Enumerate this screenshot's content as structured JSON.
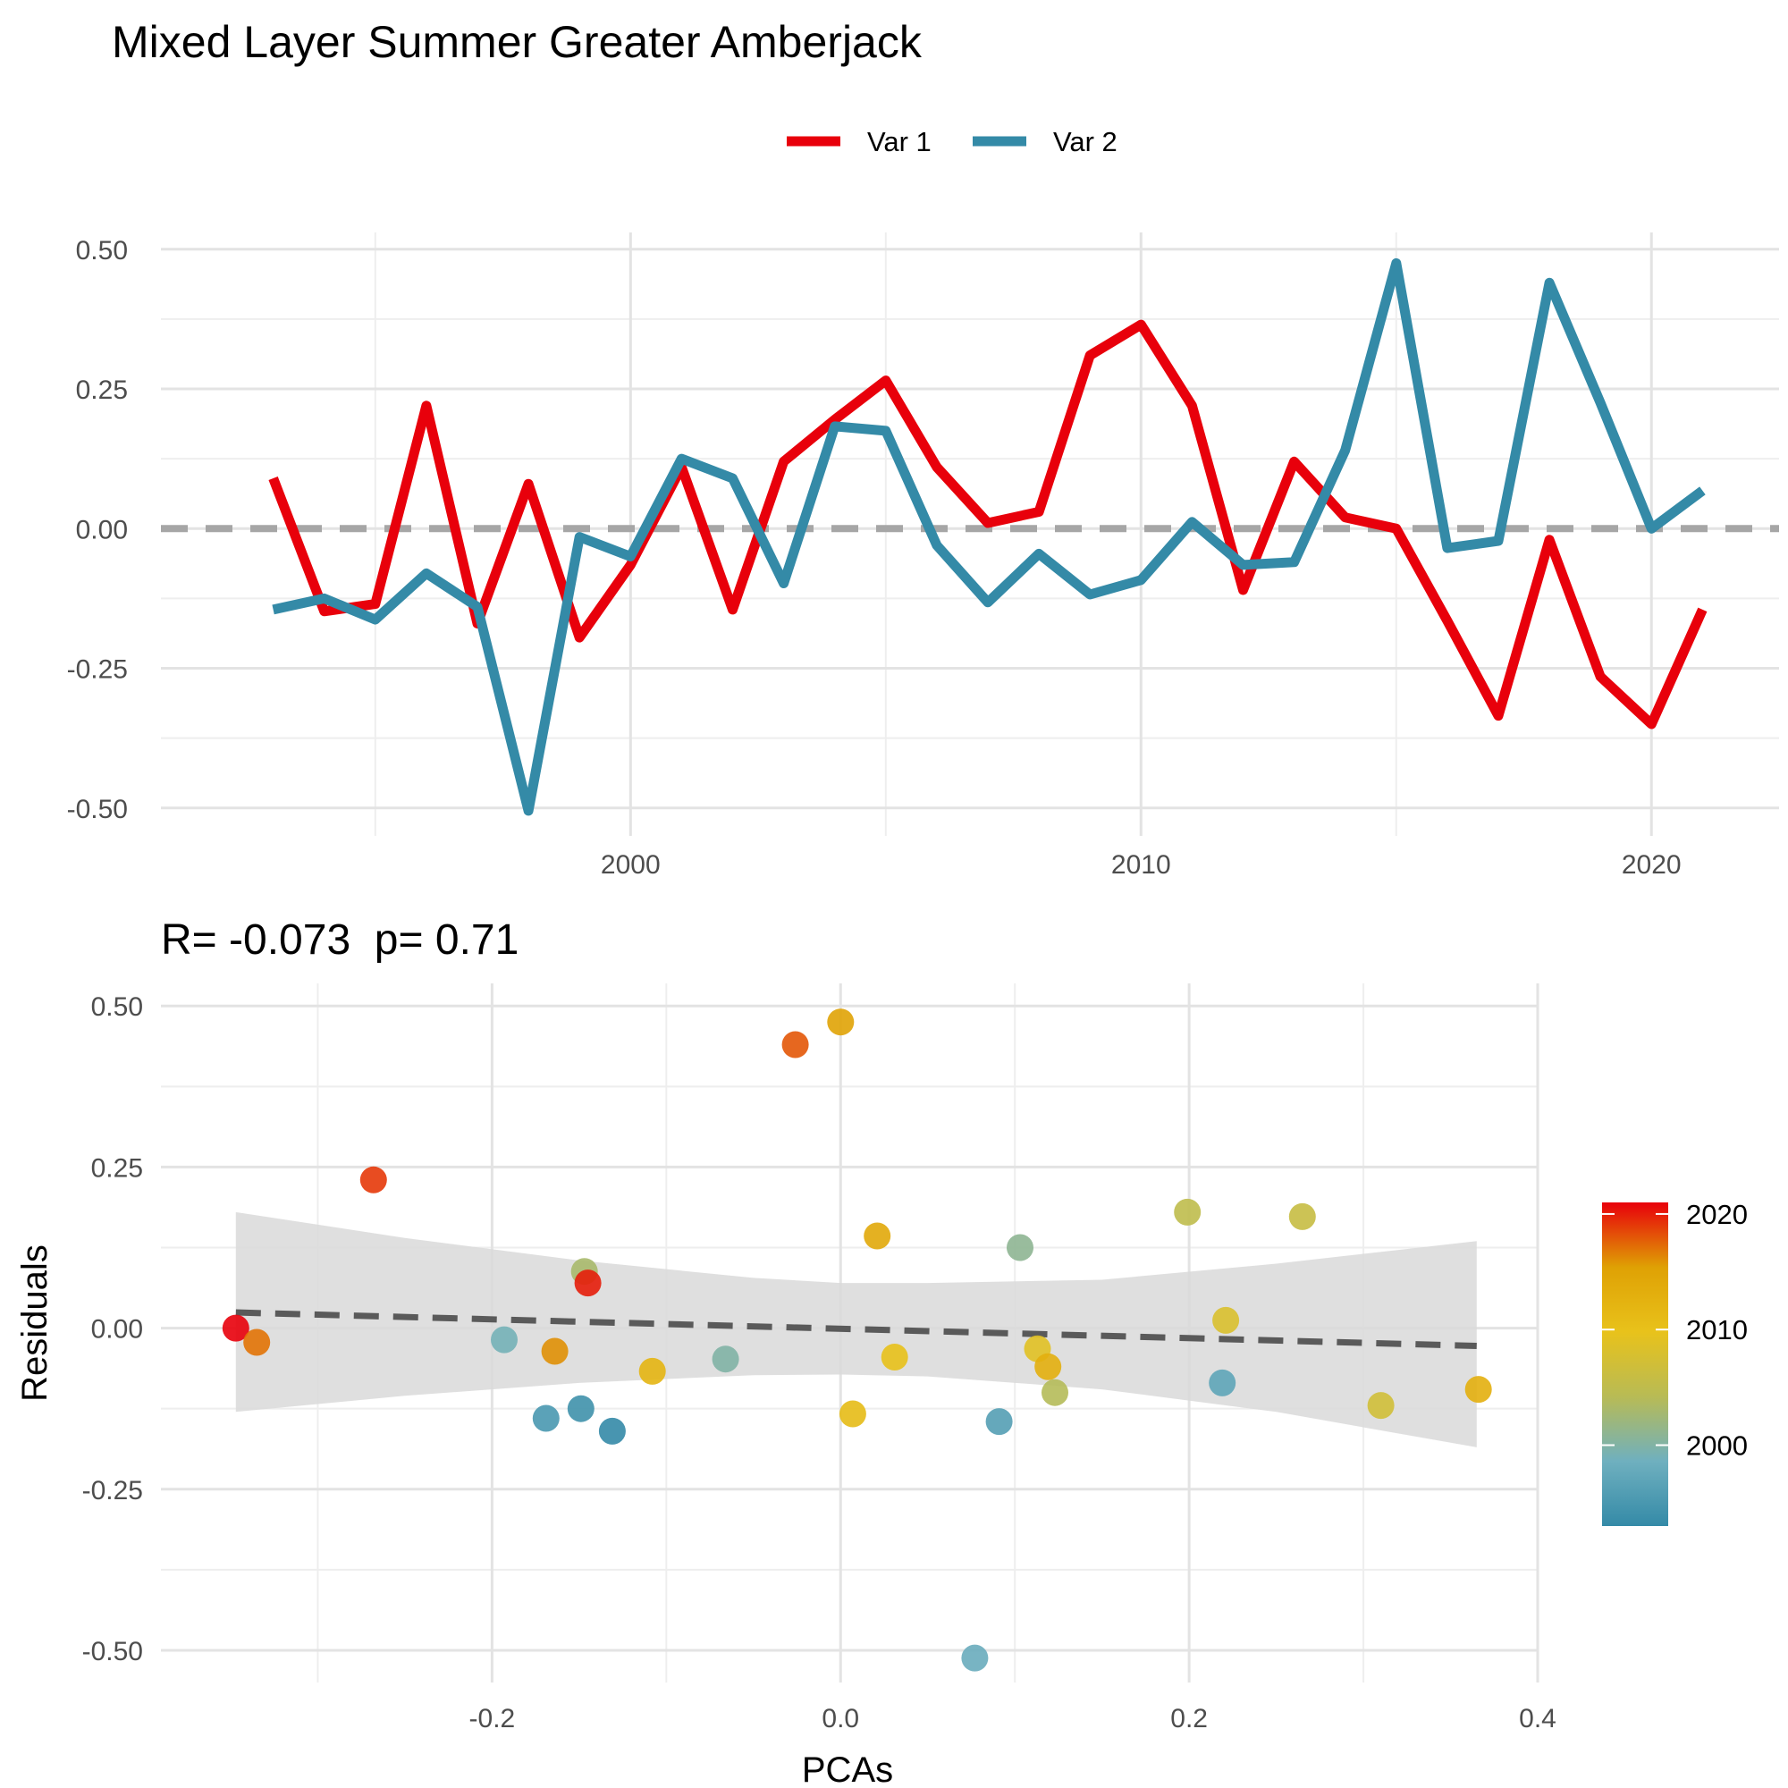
{
  "title": "Mixed Layer Summer Greater Amberjack",
  "colors": {
    "var1": "#e8000b",
    "var2": "#348aa7",
    "zero_line": "#a6a6a6",
    "fit_line": "#5a5a5a",
    "ribbon": "#d9d9d9"
  },
  "chart_data": [
    {
      "type": "line",
      "title": "",
      "xlabel": "",
      "ylabel": "",
      "legend": {
        "position": "top",
        "entries": [
          "Var 1",
          "Var 2"
        ]
      },
      "xlim": [
        1990.8,
        2022.5
      ],
      "ylim": [
        -0.55,
        0.53
      ],
      "x_ticks": [
        2000,
        2010,
        2020
      ],
      "y_ticks": [
        0.5,
        0.25,
        0.0,
        -0.25,
        -0.5
      ],
      "y_tick_labels": [
        "0.50",
        "0.25",
        "0.00",
        "-0.25",
        "-0.50"
      ],
      "grid": true,
      "reference_line": 0,
      "x": [
        1993,
        1994,
        1995,
        1996,
        1997,
        1998,
        1999,
        2000,
        2001,
        2002,
        2003,
        2004,
        2005,
        2006,
        2007,
        2008,
        2009,
        2010,
        2011,
        2012,
        2013,
        2014,
        2015,
        2016,
        2017,
        2018,
        2019,
        2020,
        2021
      ],
      "series": [
        {
          "name": "Var 1",
          "color": "#e8000b",
          "values": [
            0.09,
            -0.148,
            -0.135,
            0.22,
            -0.17,
            0.08,
            -0.195,
            -0.065,
            0.11,
            -0.145,
            0.12,
            0.195,
            0.265,
            0.11,
            0.01,
            0.03,
            0.31,
            0.365,
            0.22,
            -0.11,
            0.12,
            0.02,
            0.0,
            -0.165,
            -0.335,
            -0.02,
            -0.265,
            -0.35,
            -0.145
          ]
        },
        {
          "name": "Var 2",
          "color": "#348aa7",
          "values": [
            -0.145,
            -0.125,
            -0.163,
            -0.08,
            -0.14,
            -0.505,
            -0.015,
            -0.05,
            0.125,
            0.09,
            -0.098,
            0.183,
            0.175,
            -0.03,
            -0.132,
            -0.045,
            -0.118,
            -0.092,
            0.012,
            -0.065,
            -0.06,
            0.14,
            0.475,
            -0.035,
            -0.022,
            0.44,
            0.225,
            0.0,
            0.068
          ]
        }
      ],
      "annotation": "R= -0.073 p= 0.71"
    },
    {
      "type": "scatter",
      "title": "R= -0.073  p= 0.71",
      "xlabel": "PCAs",
      "ylabel": "Residuals",
      "xlim": [
        -0.39,
        0.4
      ],
      "ylim": [
        -0.55,
        0.535
      ],
      "x_ticks": [
        -0.2,
        0.0,
        0.2,
        0.4
      ],
      "x_tick_labels": [
        "-0.2",
        "0.0",
        "0.2",
        "0.4"
      ],
      "y_ticks": [
        0.5,
        0.25,
        0.0,
        -0.25,
        -0.5
      ],
      "y_tick_labels": [
        "0.50",
        "0.25",
        "0.00",
        "-0.25",
        "-0.50"
      ],
      "grid": true,
      "legend": {
        "position": "right",
        "type": "colorbar",
        "variable": "year",
        "ticks": [
          2020,
          2010,
          2000
        ],
        "range": [
          1993,
          2021
        ],
        "colors": [
          "#348aa7",
          "#6fb0bf",
          "#b8bb55",
          "#e8c21b",
          "#dfa104",
          "#e8000b"
        ]
      },
      "fit": {
        "intercept": -0.001,
        "slope": -0.073,
        "x_range": [
          -0.347,
          0.365
        ]
      },
      "ribbon": [
        {
          "x": -0.347,
          "lower": -0.13,
          "upper": 0.18
        },
        {
          "x": -0.25,
          "lower": -0.105,
          "upper": 0.14
        },
        {
          "x": -0.15,
          "lower": -0.085,
          "upper": 0.105
        },
        {
          "x": -0.05,
          "lower": -0.073,
          "upper": 0.078
        },
        {
          "x": 0.0,
          "lower": -0.072,
          "upper": 0.07
        },
        {
          "x": 0.05,
          "lower": -0.075,
          "upper": 0.07
        },
        {
          "x": 0.15,
          "lower": -0.095,
          "upper": 0.075
        },
        {
          "x": 0.25,
          "lower": -0.13,
          "upper": 0.1
        },
        {
          "x": 0.365,
          "lower": -0.185,
          "upper": 0.135
        }
      ],
      "points": [
        {
          "x": -0.347,
          "y": 0.0,
          "year": 2021
        },
        {
          "x": -0.335,
          "y": -0.022,
          "year": 2017
        },
        {
          "x": -0.268,
          "y": 0.23,
          "year": 2019
        },
        {
          "x": -0.193,
          "y": -0.018,
          "year": 1999
        },
        {
          "x": -0.164,
          "y": -0.036,
          "year": 2016
        },
        {
          "x": -0.169,
          "y": -0.14,
          "year": 1995
        },
        {
          "x": -0.149,
          "y": -0.125,
          "year": 1994
        },
        {
          "x": -0.147,
          "y": 0.088,
          "year": 2003
        },
        {
          "x": -0.145,
          "y": 0.07,
          "year": 2020
        },
        {
          "x": -0.131,
          "y": -0.16,
          "year": 1993
        },
        {
          "x": -0.108,
          "y": -0.067,
          "year": 2012
        },
        {
          "x": -0.066,
          "y": -0.048,
          "year": 2000
        },
        {
          "x": -0.026,
          "y": 0.44,
          "year": 2018
        },
        {
          "x": 0.0,
          "y": 0.475,
          "year": 2015
        },
        {
          "x": 0.021,
          "y": 0.143,
          "year": 2014
        },
        {
          "x": 0.007,
          "y": -0.133,
          "year": 2011
        },
        {
          "x": 0.031,
          "y": -0.045,
          "year": 2010
        },
        {
          "x": 0.077,
          "y": -0.512,
          "year": 1998
        },
        {
          "x": 0.091,
          "y": -0.145,
          "year": 1996
        },
        {
          "x": 0.103,
          "y": 0.125,
          "year": 2001
        },
        {
          "x": 0.113,
          "y": -0.032,
          "year": 2009
        },
        {
          "x": 0.119,
          "y": -0.06,
          "year": 2013
        },
        {
          "x": 0.123,
          "y": -0.1,
          "year": 2004
        },
        {
          "x": 0.199,
          "y": 0.18,
          "year": 2005
        },
        {
          "x": 0.221,
          "y": 0.012,
          "year": 2008
        },
        {
          "x": 0.219,
          "y": -0.085,
          "year": 1997
        },
        {
          "x": 0.265,
          "y": 0.173,
          "year": 2006
        },
        {
          "x": 0.31,
          "y": -0.12,
          "year": 2007
        },
        {
          "x": 0.366,
          "y": -0.095,
          "year": 2013
        }
      ]
    }
  ]
}
